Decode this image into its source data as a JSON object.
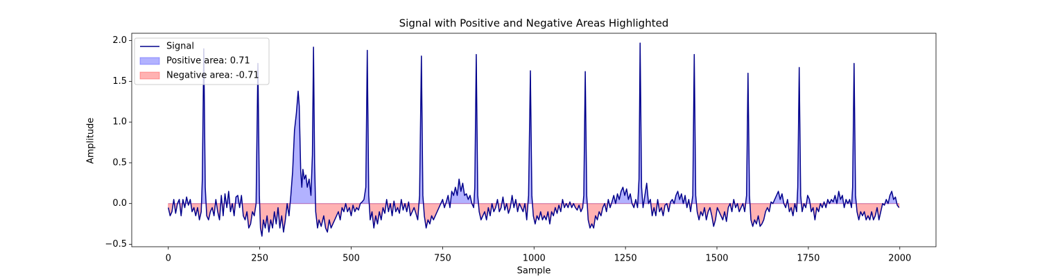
{
  "chart_data": {
    "type": "line",
    "title": "Signal with Positive and Negative Areas Highlighted",
    "xlabel": "Sample",
    "ylabel": "Amplitude",
    "xlim": [
      -100,
      2099
    ],
    "ylim": [
      -0.53,
      2.09
    ],
    "xticks": [
      0,
      250,
      500,
      750,
      1000,
      1250,
      1500,
      1750,
      2000
    ],
    "yticks": [
      {
        "value": -0.5,
        "label": "−0.5"
      },
      {
        "value": 0,
        "label": "0.0"
      },
      {
        "value": 0.5,
        "label": "0.5"
      },
      {
        "value": 1,
        "label": "1.0"
      },
      {
        "value": 1.5,
        "label": "1.5"
      },
      {
        "value": 2,
        "label": "2.0"
      }
    ],
    "legend": "upper left",
    "x": [
      0,
      5,
      10,
      15,
      20,
      25,
      30,
      35,
      40,
      45,
      50,
      55,
      60,
      65,
      70,
      75,
      80,
      85,
      90,
      93,
      97,
      101,
      105,
      110,
      115,
      120,
      125,
      130,
      135,
      140,
      145,
      150,
      155,
      160,
      165,
      170,
      175,
      180,
      185,
      190,
      195,
      200,
      205,
      210,
      215,
      220,
      225,
      230,
      235,
      240,
      245,
      249,
      252,
      256,
      260,
      265,
      270,
      275,
      280,
      285,
      290,
      295,
      300,
      305,
      310,
      315,
      320,
      325,
      330,
      335,
      340,
      345,
      350,
      355,
      358,
      362,
      365,
      368,
      372,
      376,
      380,
      385,
      390,
      394,
      397,
      400,
      403,
      408,
      412,
      418,
      425,
      430,
      435,
      440,
      445,
      450,
      455,
      460,
      465,
      470,
      475,
      480,
      485,
      490,
      495,
      500,
      505,
      510,
      515,
      520,
      525,
      530,
      535,
      540,
      544,
      548,
      552,
      557,
      562,
      567,
      572,
      577,
      582,
      587,
      592,
      597,
      602,
      607,
      612,
      617,
      622,
      627,
      632,
      637,
      642,
      647,
      652,
      657,
      662,
      667,
      672,
      677,
      682,
      687,
      692,
      696,
      700,
      705,
      710,
      715,
      720,
      725,
      730,
      735,
      740,
      745,
      750,
      755,
      760,
      765,
      770,
      775,
      780,
      785,
      790,
      795,
      800,
      805,
      810,
      815,
      820,
      825,
      830,
      835,
      838,
      842,
      846,
      850,
      855,
      860,
      865,
      870,
      875,
      880,
      885,
      890,
      895,
      900,
      905,
      910,
      915,
      920,
      925,
      930,
      935,
      940,
      945,
      950,
      955,
      960,
      965,
      970,
      975,
      980,
      985,
      990,
      994,
      998,
      1003,
      1008,
      1013,
      1018,
      1023,
      1028,
      1033,
      1038,
      1043,
      1048,
      1053,
      1058,
      1063,
      1068,
      1073,
      1078,
      1083,
      1088,
      1093,
      1098,
      1103,
      1108,
      1113,
      1118,
      1123,
      1128,
      1133,
      1136,
      1140,
      1144,
      1148,
      1153,
      1158,
      1163,
      1168,
      1173,
      1178,
      1183,
      1188,
      1193,
      1198,
      1203,
      1208,
      1213,
      1218,
      1223,
      1228,
      1233,
      1238,
      1243,
      1248,
      1253,
      1258,
      1263,
      1268,
      1273,
      1278,
      1283,
      1287,
      1290,
      1294,
      1298,
      1303,
      1308,
      1313,
      1318,
      1323,
      1328,
      1333,
      1338,
      1343,
      1348,
      1353,
      1358,
      1363,
      1368,
      1373,
      1378,
      1383,
      1388,
      1393,
      1398,
      1403,
      1408,
      1413,
      1418,
      1423,
      1428,
      1434,
      1438,
      1442,
      1446,
      1451,
      1456,
      1461,
      1466,
      1471,
      1476,
      1481,
      1486,
      1491,
      1496,
      1501,
      1506,
      1511,
      1516,
      1521,
      1526,
      1531,
      1536,
      1541,
      1546,
      1551,
      1556,
      1561,
      1566,
      1571,
      1576,
      1581,
      1585,
      1589,
      1593,
      1598,
      1603,
      1608,
      1613,
      1618,
      1623,
      1628,
      1633,
      1638,
      1643,
      1648,
      1653,
      1658,
      1663,
      1668,
      1673,
      1678,
      1683,
      1688,
      1693,
      1698,
      1703,
      1708,
      1713,
      1718,
      1721,
      1725,
      1729,
      1733,
      1738,
      1743,
      1748,
      1753,
      1758,
      1763,
      1768,
      1773,
      1778,
      1783,
      1788,
      1793,
      1798,
      1803,
      1808,
      1813,
      1818,
      1823,
      1828,
      1833,
      1838,
      1843,
      1848,
      1853,
      1858,
      1863,
      1868,
      1871,
      1875,
      1879,
      1883,
      1888,
      1893,
      1898,
      1903,
      1908,
      1913,
      1918,
      1923,
      1928,
      1933,
      1938,
      1943,
      1948,
      1953,
      1958,
      1963,
      1968,
      1973,
      1978,
      1983,
      1988,
      1993,
      1998
    ],
    "series": [
      {
        "name": "Signal",
        "color": "#00008b",
        "values": [
          -0.05,
          -0.15,
          -0.1,
          0.05,
          -0.12,
          0.0,
          0.05,
          -0.15,
          0.05,
          -0.05,
          0.08,
          -0.02,
          0.05,
          -0.1,
          -0.05,
          -0.15,
          -0.05,
          -0.2,
          -0.1,
          0.3,
          1.9,
          0.2,
          -0.15,
          -0.2,
          -0.1,
          -0.05,
          -0.15,
          0.05,
          -0.1,
          -0.2,
          0.1,
          -0.15,
          0.12,
          -0.05,
          0.15,
          -0.1,
          0.0,
          -0.15,
          0.08,
          0.1,
          -0.05,
          0.1,
          -0.15,
          -0.2,
          -0.1,
          -0.3,
          -0.25,
          -0.1,
          -0.15,
          0.0,
          1.72,
          0.1,
          -0.3,
          -0.4,
          -0.2,
          -0.3,
          -0.15,
          -0.35,
          -0.2,
          -0.3,
          -0.1,
          -0.25,
          -0.05,
          -0.3,
          -0.15,
          -0.35,
          -0.2,
          0.0,
          -0.15,
          0.1,
          0.4,
          0.9,
          1.1,
          1.38,
          1.2,
          0.4,
          0.2,
          0.42,
          0.3,
          0.35,
          0.2,
          0.3,
          0.1,
          0.6,
          1.92,
          0.5,
          -0.1,
          -0.3,
          -0.2,
          -0.28,
          -0.15,
          -0.3,
          -0.35,
          -0.2,
          -0.3,
          -0.25,
          -0.2,
          -0.15,
          -0.1,
          -0.2,
          -0.05,
          -0.1,
          0.0,
          -0.1,
          -0.05,
          -0.15,
          -0.02,
          -0.1,
          -0.05,
          -0.08,
          0.0,
          0.02,
          0.05,
          0.2,
          1.88,
          0.1,
          -0.2,
          -0.1,
          -0.3,
          -0.15,
          -0.25,
          -0.1,
          -0.2,
          -0.05,
          -0.12,
          0.05,
          -0.1,
          0.0,
          -0.15,
          0.03,
          -0.1,
          -0.05,
          -0.12,
          0.05,
          -0.08,
          0.0,
          -0.1,
          0.02,
          -0.15,
          -0.1,
          -0.05,
          -0.12,
          -0.2,
          0.1,
          1.81,
          0.1,
          -0.15,
          -0.3,
          -0.2,
          -0.25,
          -0.15,
          -0.2,
          -0.15,
          -0.1,
          -0.05,
          0.0,
          0.05,
          -0.05,
          0.02,
          0.1,
          -0.05,
          0.15,
          0.1,
          0.2,
          0.1,
          0.3,
          0.15,
          0.25,
          0.1,
          0.12,
          0.05,
          0.1,
          0.0,
          -0.05,
          0.2,
          1.83,
          0.1,
          -0.1,
          -0.2,
          -0.15,
          -0.1,
          -0.2,
          -0.05,
          -0.15,
          0.0,
          -0.1,
          -0.05,
          0.05,
          -0.1,
          -0.05,
          0.08,
          -0.08,
          0.0,
          -0.12,
          -0.05,
          0.1,
          -0.05,
          0.05,
          -0.1,
          0.0,
          -0.05,
          -0.1,
          0.0,
          -0.2,
          0.1,
          1.63,
          0.1,
          -0.15,
          -0.25,
          -0.15,
          -0.2,
          -0.1,
          -0.2,
          -0.15,
          -0.2,
          -0.1,
          -0.25,
          -0.1,
          -0.15,
          -0.05,
          -0.12,
          -0.02,
          -0.1,
          0.05,
          -0.05,
          0.0,
          -0.05,
          0.02,
          -0.05,
          0.0,
          -0.05,
          -0.08,
          -0.02,
          -0.1,
          -0.05,
          0.1,
          1.62,
          0.1,
          -0.2,
          -0.3,
          -0.25,
          -0.3,
          -0.15,
          -0.2,
          -0.1,
          -0.15,
          -0.05,
          0.0,
          -0.1,
          0.05,
          -0.05,
          0.02,
          0.1,
          0.0,
          0.12,
          0.05,
          0.15,
          0.2,
          0.1,
          0.18,
          0.05,
          0.12,
          0.0,
          -0.05,
          0.05,
          -0.05,
          0.3,
          1.97,
          0.2,
          -0.05,
          0.1,
          0.25,
          0.0,
          0.05,
          -0.15,
          -0.05,
          -0.15,
          0.05,
          -0.1,
          -0.05,
          -0.15,
          -0.02,
          0.0,
          -0.1,
          0.02,
          0.05,
          0.0,
          0.1,
          0.15,
          0.05,
          0.12,
          0.0,
          0.1,
          -0.05,
          0.05,
          -0.1,
          0.1,
          1.83,
          0.1,
          -0.1,
          -0.2,
          -0.1,
          -0.15,
          -0.05,
          -0.2,
          -0.1,
          -0.05,
          -0.15,
          -0.28,
          -0.2,
          -0.05,
          -0.1,
          -0.15,
          -0.2,
          -0.1,
          -0.22,
          -0.05,
          0.0,
          -0.1,
          0.05,
          -0.05,
          0.0,
          -0.1,
          -0.05,
          0.0,
          -0.1,
          0.1,
          1.6,
          0.1,
          -0.2,
          -0.28,
          -0.2,
          -0.25,
          -0.15,
          -0.28,
          -0.25,
          -0.2,
          -0.1,
          -0.05,
          -0.1,
          0.02,
          0.0,
          0.05,
          0.1,
          0.15,
          0.05,
          0.12,
          0.0,
          -0.05,
          0.05,
          -0.1,
          -0.05,
          -0.15,
          0.0,
          -0.1,
          0.2,
          1.67,
          0.1,
          -0.1,
          0.0,
          -0.05,
          0.1,
          0.05,
          -0.1,
          -0.05,
          -0.2,
          -0.05,
          -0.1,
          0.0,
          -0.05,
          0.02,
          -0.05,
          0.05,
          0.0,
          0.05,
          0.02,
          0.1,
          0.0,
          0.15,
          0.05,
          0.1,
          -0.05,
          0.05,
          0.0,
          0.05,
          -0.05,
          0.2,
          1.72,
          0.1,
          -0.1,
          -0.2,
          -0.1,
          -0.15,
          -0.1,
          -0.2,
          -0.15,
          -0.2,
          -0.1,
          -0.2,
          -0.15,
          -0.05,
          -0.2,
          -0.1,
          0.0,
          -0.02,
          0.05,
          0.0,
          0.1,
          0.15,
          0.05,
          0.08,
          -0.02,
          -0.05
        ]
      }
    ],
    "areas": [
      {
        "name": "Positive area: 0.71",
        "color": "#0000ff"
      },
      {
        "name": "Negative area: -0.71",
        "color": "#ff0000"
      }
    ]
  }
}
